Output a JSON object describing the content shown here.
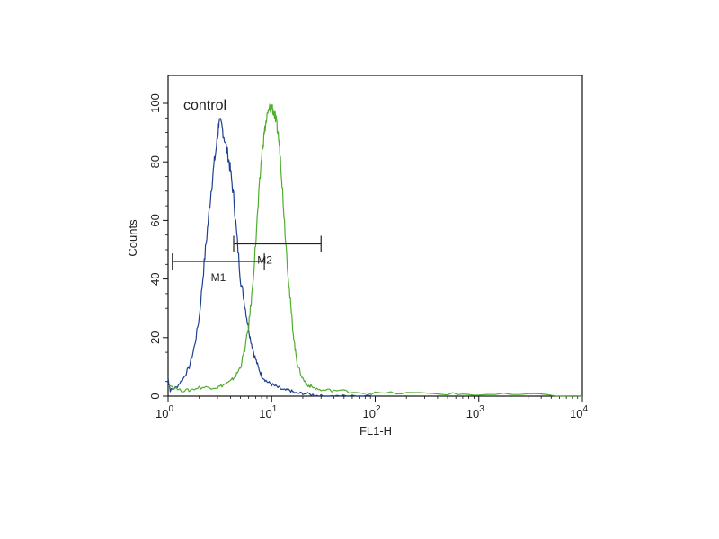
{
  "chart_data": {
    "type": "line",
    "xlabel": "FL1-H",
    "ylabel": "Counts",
    "x_scale": "log",
    "xlim": [
      1,
      10000
    ],
    "ylim": [
      0,
      100
    ],
    "x_ticks": [
      {
        "base": "10",
        "exp": "0",
        "value": 1
      },
      {
        "base": "10",
        "exp": "1",
        "value": 10
      },
      {
        "base": "10",
        "exp": "2",
        "value": 100
      },
      {
        "base": "10",
        "exp": "3",
        "value": 1000
      },
      {
        "base": "10",
        "exp": "4",
        "value": 10000
      }
    ],
    "y_ticks": [
      "0",
      "20",
      "40",
      "60",
      "80",
      "100"
    ],
    "y_tick_values": [
      0,
      20,
      40,
      60,
      80,
      100
    ],
    "annotation": "control",
    "series": [
      {
        "color": "#1f3f8f",
        "x": [
          1.0,
          1.05,
          1.2,
          1.4,
          1.6,
          1.8,
          2.0,
          2.2,
          2.4,
          2.6,
          2.8,
          3.0,
          3.1,
          3.3,
          3.5,
          3.8,
          4.0,
          4.3,
          4.6,
          5.0,
          5.4,
          5.8,
          6.2,
          6.8,
          7.4,
          8.0,
          9.0,
          10.0,
          11.5,
          13.0,
          15.0,
          17.0,
          20.0,
          25.0,
          30.0,
          40.0,
          60.0,
          100.0
        ],
        "y": [
          6,
          2,
          3,
          6,
          10,
          17,
          27,
          43,
          57,
          70,
          80,
          88,
          94,
          92,
          88,
          82,
          77,
          68,
          55,
          40,
          33,
          26,
          20,
          14,
          10,
          7,
          5,
          4,
          3,
          2,
          2,
          1,
          1,
          0.5,
          0,
          0,
          0,
          0
        ]
      },
      {
        "color": "#4fae2e",
        "x": [
          1.0,
          1.3,
          1.6,
          2.0,
          2.5,
          3.0,
          3.5,
          4.0,
          4.5,
          5.0,
          5.5,
          6.0,
          6.5,
          7.0,
          7.5,
          8.0,
          8.5,
          9.0,
          9.5,
          10.0,
          10.5,
          11.0,
          11.5,
          12.0,
          12.5,
          13.0,
          14.0,
          15.0,
          16.0,
          17.0,
          18.0,
          20.0,
          22.0,
          25.0,
          30.0,
          40.0,
          60.0,
          100.0,
          200.0,
          500.0,
          1000.0,
          3000.0,
          10000.0
        ],
        "y": [
          4,
          2,
          2,
          3,
          3,
          3,
          4,
          5,
          7,
          10,
          16,
          24,
          36,
          52,
          68,
          82,
          90,
          95,
          98,
          99,
          97,
          94,
          90,
          84,
          75,
          65,
          48,
          34,
          23,
          15,
          10,
          6,
          4,
          3,
          2,
          2,
          1.5,
          1,
          1,
          0.8,
          0.5,
          0.5,
          0
        ]
      }
    ],
    "markers": [
      {
        "label": "M1",
        "x_start": 1.1,
        "x_end": 8.5,
        "y": 46
      },
      {
        "label": "M2",
        "x_start": 4.3,
        "x_end": 30,
        "y": 52
      }
    ]
  }
}
